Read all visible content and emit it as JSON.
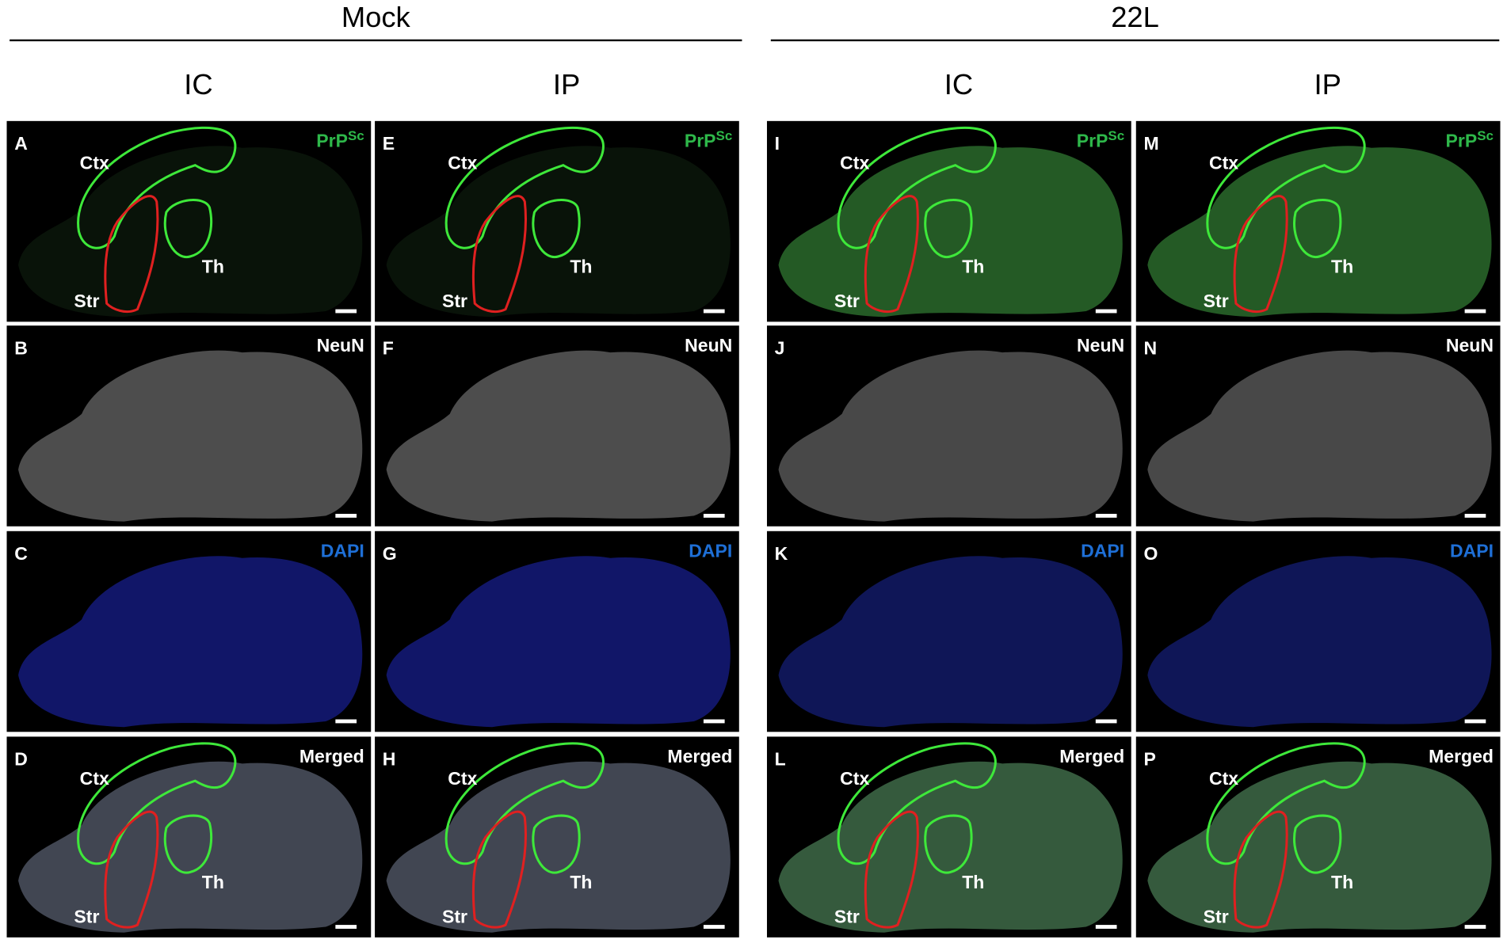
{
  "groups": [
    {
      "title": "Mock",
      "columns": [
        {
          "title": "IC",
          "panels": [
            {
              "letter": "A",
              "stain": {
                "text": "PrP",
                "superscript": "Sc"
              },
              "regions": {
                "ctx": "Ctx",
                "th": "Th",
                "str": "Str"
              }
            },
            {
              "letter": "B",
              "stain": {
                "text": "NeuN"
              }
            },
            {
              "letter": "C",
              "stain": {
                "text": "DAPI"
              }
            },
            {
              "letter": "D",
              "stain": {
                "text": "Merged"
              },
              "regions": {
                "ctx": "Ctx",
                "th": "Th",
                "str": "Str"
              }
            }
          ]
        },
        {
          "title": "IP",
          "panels": [
            {
              "letter": "E",
              "stain": {
                "text": "PrP",
                "superscript": "Sc"
              },
              "regions": {
                "ctx": "Ctx",
                "th": "Th",
                "str": "Str"
              }
            },
            {
              "letter": "F",
              "stain": {
                "text": "NeuN"
              }
            },
            {
              "letter": "G",
              "stain": {
                "text": "DAPI"
              }
            },
            {
              "letter": "H",
              "stain": {
                "text": "Merged"
              },
              "regions": {
                "ctx": "Ctx",
                "th": "Th",
                "str": "Str"
              }
            }
          ]
        }
      ]
    },
    {
      "title": "22L",
      "columns": [
        {
          "title": "IC",
          "panels": [
            {
              "letter": "I",
              "stain": {
                "text": "PrP",
                "superscript": "Sc"
              },
              "regions": {
                "ctx": "Ctx",
                "th": "Th",
                "str": "Str"
              }
            },
            {
              "letter": "J",
              "stain": {
                "text": "NeuN"
              }
            },
            {
              "letter": "K",
              "stain": {
                "text": "DAPI"
              }
            },
            {
              "letter": "L",
              "stain": {
                "text": "Merged"
              },
              "regions": {
                "ctx": "Ctx",
                "th": "Th",
                "str": "Str"
              }
            }
          ]
        },
        {
          "title": "IP",
          "panels": [
            {
              "letter": "M",
              "stain": {
                "text": "PrP",
                "superscript": "Sc"
              },
              "regions": {
                "ctx": "Ctx",
                "th": "Th",
                "str": "Str"
              }
            },
            {
              "letter": "N",
              "stain": {
                "text": "NeuN"
              }
            },
            {
              "letter": "O",
              "stain": {
                "text": "DAPI"
              }
            },
            {
              "letter": "P",
              "stain": {
                "text": "Merged"
              },
              "regions": {
                "ctx": "Ctx",
                "th": "Th",
                "str": "Str"
              }
            }
          ]
        }
      ]
    }
  ]
}
